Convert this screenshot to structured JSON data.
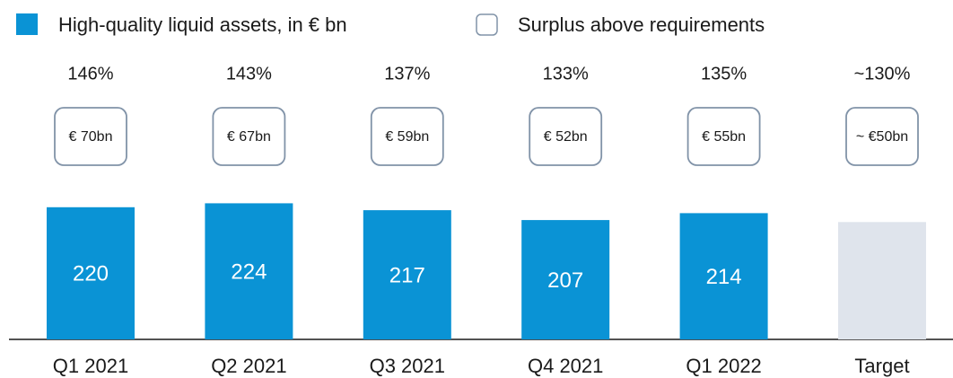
{
  "chart_data": {
    "type": "bar",
    "legend": [
      {
        "name": "High-quality liquid assets, in € bn",
        "color": "#0a93d5"
      },
      {
        "name": "Surplus above requirements",
        "color": "#ffffff"
      }
    ],
    "categories": [
      "Q1 2021",
      "Q2 2021",
      "Q3 2021",
      "Q4 2021",
      "Q1 2022",
      "Target"
    ],
    "values": [
      220,
      224,
      217,
      207,
      214,
      205
    ],
    "value_labels": [
      "220",
      "224",
      "217",
      "207",
      "214",
      null
    ],
    "colors": [
      "#0a93d5",
      "#0a93d5",
      "#0a93d5",
      "#0a93d5",
      "#0a93d5",
      "#dfe4ec"
    ],
    "ratios": [
      "146%",
      "143%",
      "137%",
      "133%",
      "135%",
      "~130%"
    ],
    "surplus": [
      "€ 70bn",
      "€ 67bn",
      "€ 59bn",
      "€ 52bn",
      "€ 55bn",
      "~ €50bn"
    ],
    "ylim": [
      86,
      350
    ]
  }
}
